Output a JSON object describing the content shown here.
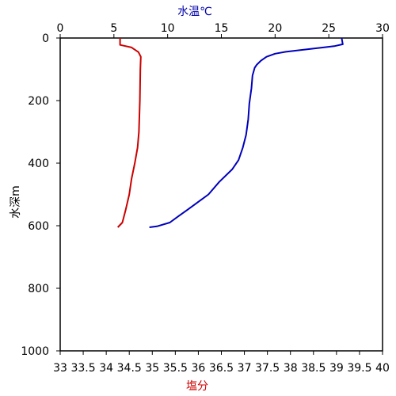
{
  "chart_data": {
    "type": "line",
    "yaxis": {
      "label": "水深m",
      "range": [
        0,
        1000
      ],
      "ticks": [
        0,
        200,
        400,
        600,
        800,
        1000
      ],
      "reversed": true
    },
    "xaxis_top": {
      "label": "水温℃",
      "range": [
        0,
        30
      ],
      "ticks": [
        0,
        5,
        10,
        15,
        20,
        25,
        30
      ],
      "color": "#0000aa"
    },
    "xaxis_bottom": {
      "label": "塩分",
      "range": [
        33,
        40
      ],
      "ticks": [
        "33",
        "33.5",
        "34",
        "34.5",
        "35",
        "35.5",
        "36",
        "36.5",
        "37",
        "37.5",
        "38",
        "38.5",
        "39",
        "39.5",
        "40"
      ],
      "color": "#cc0000"
    },
    "grid": false,
    "series": [
      {
        "axis": "top",
        "color": "#0000bb",
        "points": [
          [
            26.2,
            0
          ],
          [
            26.3,
            20
          ],
          [
            25.5,
            26
          ],
          [
            24.5,
            30
          ],
          [
            22.5,
            38
          ],
          [
            21.0,
            44
          ],
          [
            20.0,
            50
          ],
          [
            19.2,
            60
          ],
          [
            18.7,
            72
          ],
          [
            18.3,
            85
          ],
          [
            18.1,
            95
          ],
          [
            17.9,
            120
          ],
          [
            17.8,
            160
          ],
          [
            17.6,
            210
          ],
          [
            17.5,
            260
          ],
          [
            17.3,
            310
          ],
          [
            17.0,
            350
          ],
          [
            16.6,
            390
          ],
          [
            16.0,
            420
          ],
          [
            14.8,
            460
          ],
          [
            13.8,
            500
          ],
          [
            12.6,
            530
          ],
          [
            11.8,
            550
          ],
          [
            11.0,
            570
          ],
          [
            10.2,
            590
          ],
          [
            9.0,
            602
          ],
          [
            8.3,
            605
          ]
        ]
      },
      {
        "axis": "bottom",
        "color": "#cc0000",
        "points": [
          [
            34.3,
            0
          ],
          [
            34.3,
            22
          ],
          [
            34.55,
            30
          ],
          [
            34.7,
            45
          ],
          [
            34.75,
            60
          ],
          [
            34.74,
            100
          ],
          [
            34.73,
            200
          ],
          [
            34.71,
            300
          ],
          [
            34.68,
            350
          ],
          [
            34.62,
            400
          ],
          [
            34.55,
            450
          ],
          [
            34.5,
            500
          ],
          [
            34.42,
            550
          ],
          [
            34.35,
            590
          ],
          [
            34.25,
            605
          ]
        ]
      }
    ]
  }
}
